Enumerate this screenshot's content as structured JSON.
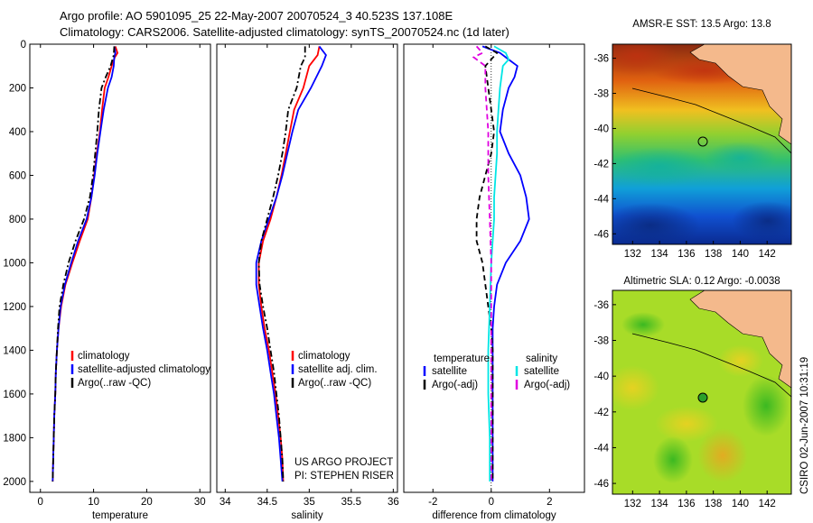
{
  "header": {
    "title_line1": "Argo profile: AO 5901095_25 22-May-2007 20070524_3 40.523S 137.108E",
    "title_line2": "Climatology: CARS2006. Satellite-adjusted climatology: synTS_20070524.nc (1d later)"
  },
  "credit": {
    "project": "US ARGO PROJECT",
    "pi": "PI: STEPHEN RISER",
    "stamp": "CSIRO 02-Jun-2007 10:31:19"
  },
  "colors": {
    "climatology": "#ff0000",
    "satellite": "#0000ff",
    "argo": "#000000",
    "satellite_salinity_diff": "#00e5e5",
    "argo_salinity_diff": "#e000e0",
    "land": "#f4b98c",
    "marker_open": "none",
    "marker_filled": "#2aa02a"
  },
  "chart_data": [
    {
      "type": "line",
      "xlabel": "temperature",
      "ylabel": "",
      "xlim": [
        -2,
        32
      ],
      "ylim": [
        2050,
        0
      ],
      "x_ticks": [
        0,
        10,
        20,
        30
      ],
      "y_ticks": [
        0,
        200,
        400,
        600,
        800,
        1000,
        1200,
        1400,
        1600,
        1800,
        2000
      ],
      "legend": [
        "climatology",
        "satellite-adjusted climatology",
        "Argo(..raw -QC)"
      ],
      "legend_position": "bottom-right",
      "series": [
        {
          "name": "climatology",
          "style": "solid",
          "color_key": "climatology",
          "points": [
            [
              14.1,
              10
            ],
            [
              14.5,
              40
            ],
            [
              14.0,
              60
            ],
            [
              13.4,
              100
            ],
            [
              12.8,
              150
            ],
            [
              12.1,
              200
            ],
            [
              11.6,
              300
            ],
            [
              11.2,
              400
            ],
            [
              10.6,
              500
            ],
            [
              10.1,
              600
            ],
            [
              9.6,
              700
            ],
            [
              8.9,
              800
            ],
            [
              7.4,
              900
            ],
            [
              6.0,
              1000
            ],
            [
              4.7,
              1100
            ],
            [
              3.9,
              1200
            ],
            [
              3.4,
              1300
            ],
            [
              3.1,
              1400
            ],
            [
              2.9,
              1500
            ],
            [
              2.8,
              1600
            ],
            [
              2.6,
              1700
            ],
            [
              2.5,
              1800
            ],
            [
              2.4,
              1900
            ],
            [
              2.3,
              2000
            ]
          ]
        },
        {
          "name": "satellite-adjusted climatology",
          "style": "solid",
          "color_key": "satellite",
          "points": [
            [
              13.9,
              10
            ],
            [
              14.1,
              40
            ],
            [
              13.9,
              60
            ],
            [
              13.8,
              100
            ],
            [
              13.4,
              150
            ],
            [
              12.7,
              200
            ],
            [
              11.9,
              300
            ],
            [
              11.3,
              400
            ],
            [
              10.7,
              500
            ],
            [
              10.2,
              600
            ],
            [
              9.6,
              700
            ],
            [
              8.7,
              800
            ],
            [
              7.1,
              900
            ],
            [
              5.8,
              1000
            ],
            [
              4.6,
              1100
            ],
            [
              3.8,
              1200
            ],
            [
              3.4,
              1300
            ],
            [
              3.1,
              1400
            ],
            [
              2.9,
              1500
            ],
            [
              2.8,
              1600
            ],
            [
              2.6,
              1700
            ],
            [
              2.5,
              1800
            ],
            [
              2.4,
              1900
            ],
            [
              2.3,
              2000
            ]
          ]
        },
        {
          "name": "Argo(..raw -QC)",
          "style": "dash-dot",
          "color_key": "argo",
          "points": [
            [
              13.9,
              10
            ],
            [
              13.8,
              50
            ],
            [
              13.2,
              100
            ],
            [
              12.3,
              150
            ],
            [
              11.5,
              200
            ],
            [
              11.0,
              300
            ],
            [
              10.7,
              400
            ],
            [
              10.3,
              500
            ],
            [
              9.9,
              600
            ],
            [
              9.3,
              700
            ],
            [
              8.2,
              800
            ],
            [
              6.6,
              900
            ],
            [
              5.3,
              1000
            ],
            [
              4.3,
              1100
            ],
            [
              3.6,
              1200
            ],
            [
              3.3,
              1300
            ],
            [
              3.1,
              1400
            ],
            [
              2.9,
              1500
            ],
            [
              2.8,
              1600
            ],
            [
              2.6,
              1700
            ],
            [
              2.5,
              1800
            ],
            [
              2.4,
              1900
            ],
            [
              2.3,
              2000
            ]
          ]
        }
      ]
    },
    {
      "type": "line",
      "xlabel": "salinity",
      "ylabel": "",
      "xlim": [
        33.9,
        36.05
      ],
      "ylim": [
        2050,
        0
      ],
      "x_ticks": [
        34,
        34.5,
        35,
        35.5,
        36
      ],
      "y_ticks": [],
      "legend": [
        "climatology",
        "satellite adj. clim.",
        "Argo(..raw -QC)"
      ],
      "legend_position": "bottom-right",
      "series": [
        {
          "name": "climatology",
          "style": "solid",
          "color_key": "climatology",
          "points": [
            [
              35.12,
              10
            ],
            [
              35.1,
              50
            ],
            [
              35.0,
              100
            ],
            [
              34.93,
              200
            ],
            [
              34.82,
              300
            ],
            [
              34.77,
              400
            ],
            [
              34.72,
              500
            ],
            [
              34.67,
              600
            ],
            [
              34.61,
              700
            ],
            [
              34.54,
              800
            ],
            [
              34.45,
              900
            ],
            [
              34.4,
              1000
            ],
            [
              34.4,
              1100
            ],
            [
              34.43,
              1200
            ],
            [
              34.47,
              1300
            ],
            [
              34.52,
              1400
            ],
            [
              34.56,
              1500
            ],
            [
              34.6,
              1600
            ],
            [
              34.63,
              1700
            ],
            [
              34.66,
              1800
            ],
            [
              34.68,
              1900
            ],
            [
              34.69,
              2000
            ]
          ]
        },
        {
          "name": "satellite adj. clim.",
          "style": "solid",
          "color_key": "satellite",
          "points": [
            [
              35.12,
              10
            ],
            [
              35.2,
              50
            ],
            [
              35.15,
              100
            ],
            [
              35.02,
              200
            ],
            [
              34.87,
              300
            ],
            [
              34.8,
              400
            ],
            [
              34.74,
              500
            ],
            [
              34.68,
              600
            ],
            [
              34.61,
              700
            ],
            [
              34.52,
              800
            ],
            [
              34.43,
              900
            ],
            [
              34.37,
              1000
            ],
            [
              34.37,
              1100
            ],
            [
              34.41,
              1200
            ],
            [
              34.45,
              1300
            ],
            [
              34.5,
              1400
            ],
            [
              34.54,
              1500
            ],
            [
              34.58,
              1600
            ],
            [
              34.61,
              1700
            ],
            [
              34.64,
              1800
            ],
            [
              34.66,
              1900
            ],
            [
              34.68,
              2000
            ]
          ]
        },
        {
          "name": "Argo(..raw -QC)",
          "style": "dash-dot",
          "color_key": "argo",
          "points": [
            [
              34.95,
              10
            ],
            [
              34.95,
              60
            ],
            [
              34.9,
              100
            ],
            [
              34.85,
              200
            ],
            [
              34.75,
              300
            ],
            [
              34.72,
              400
            ],
            [
              34.68,
              500
            ],
            [
              34.63,
              600
            ],
            [
              34.57,
              700
            ],
            [
              34.5,
              800
            ],
            [
              34.43,
              900
            ],
            [
              34.4,
              1000
            ],
            [
              34.41,
              1100
            ],
            [
              34.45,
              1200
            ],
            [
              34.5,
              1300
            ],
            [
              34.54,
              1400
            ],
            [
              34.58,
              1500
            ],
            [
              34.61,
              1600
            ],
            [
              34.64,
              1700
            ],
            [
              34.66,
              1800
            ],
            [
              34.68,
              1900
            ],
            [
              34.69,
              2000
            ]
          ]
        }
      ]
    },
    {
      "type": "line",
      "xlabel": "difference from climatology",
      "ylabel": "",
      "xlim": [
        -3,
        3.2
      ],
      "ylim": [
        2050,
        0
      ],
      "x_ticks": [
        -2,
        0,
        2
      ],
      "y_ticks": [],
      "legend_groups": [
        {
          "title": "temperature",
          "items": [
            "satellite",
            "Argo(-adj)"
          ]
        },
        {
          "title": "salinity",
          "items": [
            "satellite",
            "Argo(-adj)"
          ]
        }
      ],
      "legend_position": "bottom",
      "series": [
        {
          "name": "temperature satellite",
          "style": "solid",
          "color_key": "satellite",
          "points": [
            [
              -0.3,
              10
            ],
            [
              0.3,
              40
            ],
            [
              0.6,
              70
            ],
            [
              0.9,
              100
            ],
            [
              0.8,
              150
            ],
            [
              0.6,
              200
            ],
            [
              0.4,
              300
            ],
            [
              0.3,
              400
            ],
            [
              0.6,
              500
            ],
            [
              1.0,
              600
            ],
            [
              1.2,
              700
            ],
            [
              1.3,
              800
            ],
            [
              1.0,
              900
            ],
            [
              0.5,
              1000
            ],
            [
              0.2,
              1100
            ],
            [
              0.1,
              1200
            ],
            [
              0.05,
              1300
            ],
            [
              0.05,
              1400
            ],
            [
              0.05,
              1600
            ],
            [
              0.05,
              1800
            ],
            [
              0.05,
              2000
            ]
          ]
        },
        {
          "name": "temperature Argo(-adj)",
          "style": "dashed",
          "color_key": "argo",
          "points": [
            [
              -0.2,
              10
            ],
            [
              0.2,
              40
            ],
            [
              -0.2,
              100
            ],
            [
              -0.1,
              200
            ],
            [
              0.0,
              300
            ],
            [
              0.1,
              400
            ],
            [
              0.0,
              500
            ],
            [
              -0.2,
              600
            ],
            [
              -0.4,
              700
            ],
            [
              -0.5,
              800
            ],
            [
              -0.5,
              900
            ],
            [
              -0.3,
              1000
            ],
            [
              -0.2,
              1100
            ],
            [
              -0.1,
              1200
            ],
            [
              0.0,
              1300
            ],
            [
              0.05,
              1400
            ],
            [
              0.05,
              1600
            ],
            [
              0.05,
              1800
            ],
            [
              0.05,
              2000
            ]
          ]
        },
        {
          "name": "salinity satellite",
          "style": "solid",
          "color_key": "satellite_salinity_diff",
          "points": [
            [
              0.1,
              10
            ],
            [
              0.5,
              40
            ],
            [
              0.6,
              70
            ],
            [
              0.4,
              100
            ],
            [
              0.3,
              200
            ],
            [
              0.25,
              300
            ],
            [
              0.2,
              400
            ],
            [
              0.2,
              500
            ],
            [
              0.15,
              600
            ],
            [
              0.1,
              700
            ],
            [
              0.1,
              800
            ],
            [
              0.0,
              1000
            ],
            [
              -0.05,
              1200
            ],
            [
              -0.1,
              1400
            ],
            [
              -0.1,
              1600
            ],
            [
              -0.05,
              1800
            ],
            [
              -0.05,
              2000
            ]
          ]
        },
        {
          "name": "salinity Argo(-adj)",
          "style": "dashed",
          "color_key": "argo_salinity_diff",
          "points": [
            [
              -0.5,
              10
            ],
            [
              -0.3,
              40
            ],
            [
              -0.6,
              60
            ],
            [
              -0.2,
              100
            ],
            [
              -0.2,
              200
            ],
            [
              -0.1,
              400
            ],
            [
              -0.1,
              600
            ],
            [
              -0.05,
              800
            ],
            [
              0.0,
              1000
            ],
            [
              0.0,
              1200
            ],
            [
              0.0,
              1400
            ],
            [
              0.0,
              1600
            ],
            [
              0.0,
              1800
            ],
            [
              0.0,
              2000
            ]
          ]
        }
      ]
    },
    {
      "type": "heatmap",
      "title": "AMSR-E SST: 13.5 Argo: 13.8",
      "xlim": [
        130.5,
        143.8
      ],
      "ylim": [
        -46.6,
        -35.2
      ],
      "x_ticks": [
        132,
        134,
        136,
        138,
        140,
        142
      ],
      "y_ticks": [
        -36,
        -38,
        -40,
        -42,
        -44,
        -46
      ],
      "marker": {
        "lon": 137.1,
        "lat": -40.5,
        "fill_key": "marker_open"
      }
    },
    {
      "type": "heatmap",
      "title": "Altimetric SLA: 0.12 Argo: -0.0038",
      "xlim": [
        130.5,
        143.8
      ],
      "ylim": [
        -46.6,
        -35.2
      ],
      "x_ticks": [
        132,
        134,
        136,
        138,
        140,
        142
      ],
      "y_ticks": [
        -36,
        -38,
        -40,
        -42,
        -44,
        -46
      ],
      "marker": {
        "lon": 137.1,
        "lat": -40.5,
        "fill_key": "marker_filled"
      }
    }
  ]
}
